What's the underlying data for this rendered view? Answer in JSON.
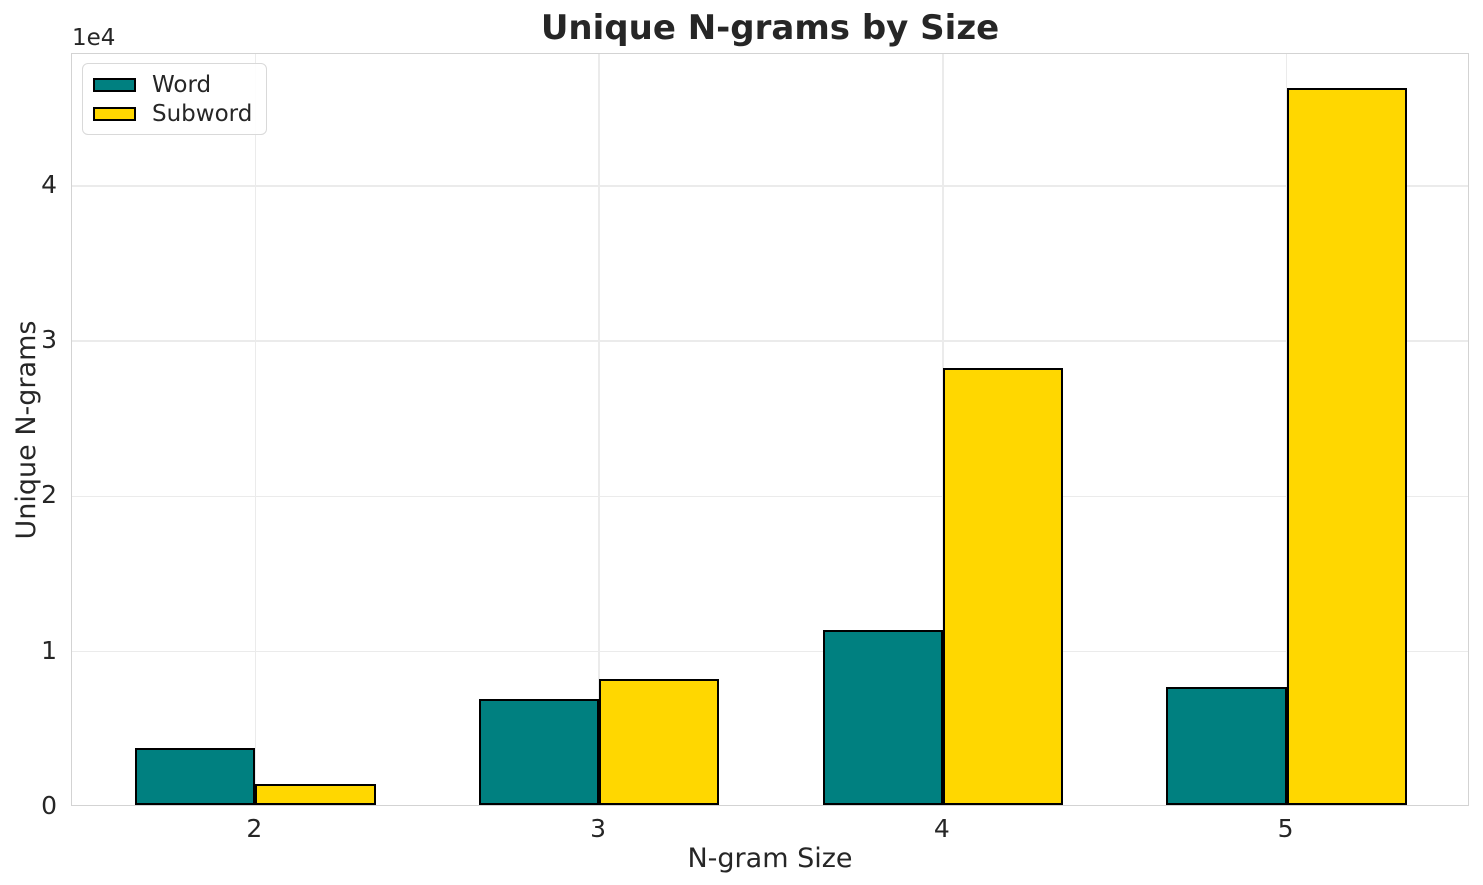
{
  "chart_data": {
    "type": "bar",
    "title": "Unique N-grams by Size",
    "xlabel": "N-gram Size",
    "ylabel": "Unique N-grams",
    "y_offset_text": "1e4",
    "categories": [
      "2",
      "3",
      "4",
      "5"
    ],
    "x_numeric": [
      2,
      3,
      4,
      5
    ],
    "series": [
      {
        "name": "Word",
        "color": "#008080",
        "values": [
          3700,
          6800,
          11300,
          7600
        ]
      },
      {
        "name": "Subword",
        "color": "#FFD700",
        "values": [
          1350,
          8100,
          28150,
          46200
        ]
      }
    ],
    "bar_edge_color": "#000000",
    "bar_width_units": 0.35,
    "xlim": [
      1.4665,
      5.5335
    ],
    "ylim": [
      0,
      48500
    ],
    "yticks": [
      0,
      10000,
      20000,
      30000,
      40000
    ],
    "ytick_labels": [
      "0",
      "1",
      "2",
      "3",
      "4"
    ],
    "grid": true,
    "gridline_color": "#ebebeb",
    "legend_position": "upper left"
  }
}
